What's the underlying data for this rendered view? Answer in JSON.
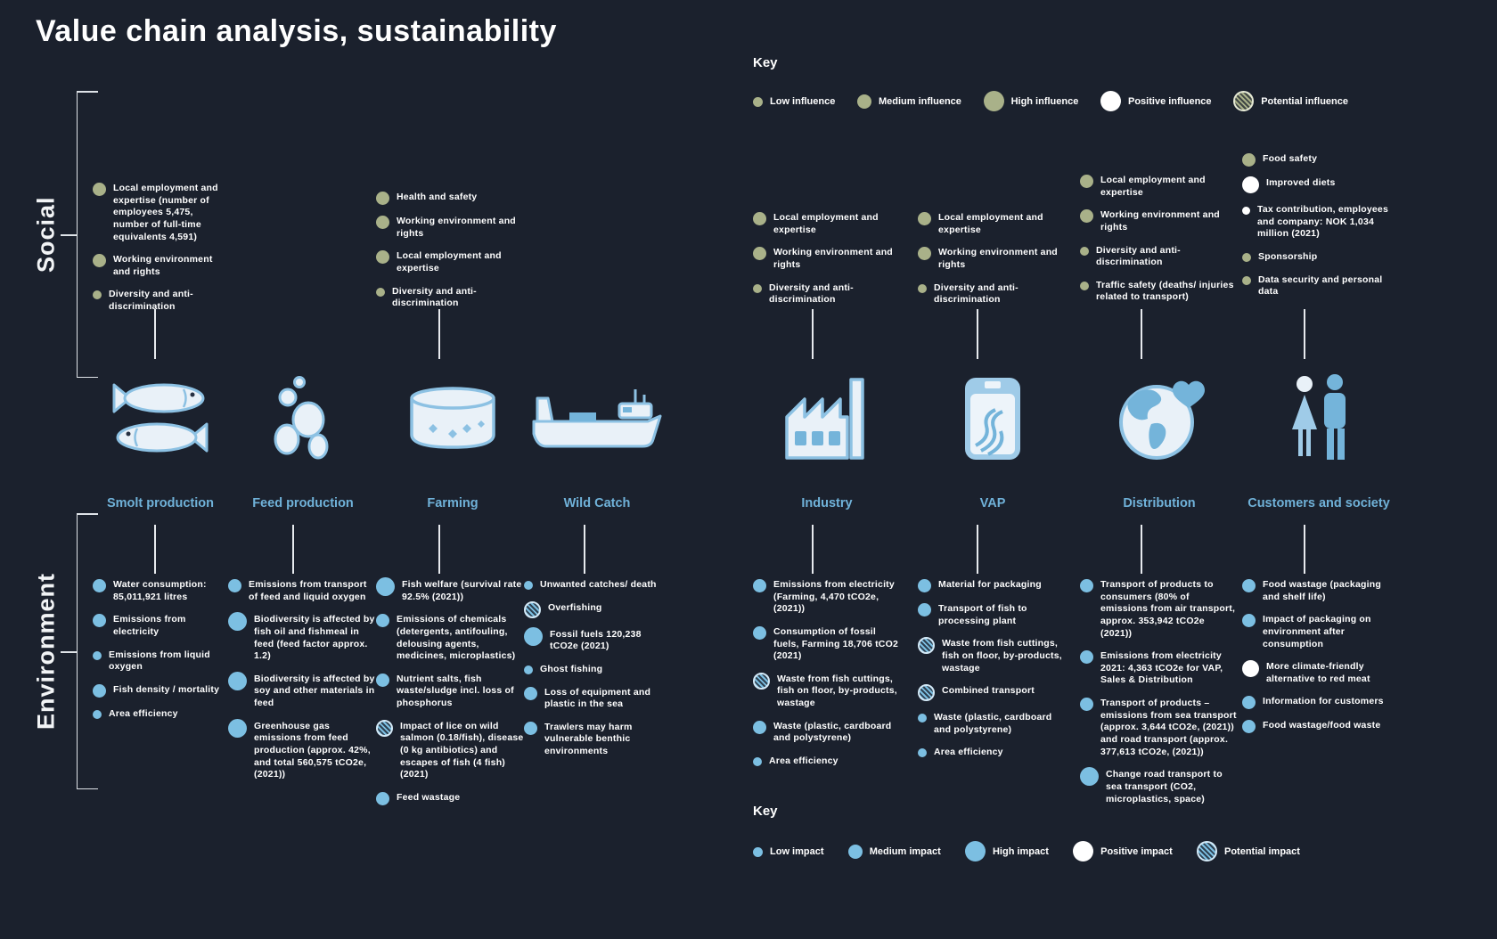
{
  "title": "Value chain analysis, sustainability",
  "colors": {
    "background": "#1b212d",
    "influence_dot": "#a9b189",
    "impact_dot": "#7cbfe2",
    "positive_dot": "#ffffff",
    "stage_label": "#70b2d9",
    "text": "#ffffff"
  },
  "sections": {
    "social": "Social",
    "environment": "Environment"
  },
  "key_influence": {
    "title": "Key",
    "items": [
      {
        "label": "Low influence",
        "marker": "low"
      },
      {
        "label": "Medium influence",
        "marker": "medium"
      },
      {
        "label": "High influence",
        "marker": "high"
      },
      {
        "label": "Positive influence",
        "marker": "positive"
      },
      {
        "label": "Potential influence",
        "marker": "potential"
      }
    ]
  },
  "key_impact": {
    "title": "Key",
    "items": [
      {
        "label": "Low impact",
        "marker": "low"
      },
      {
        "label": "Medium impact",
        "marker": "medium"
      },
      {
        "label": "High impact",
        "marker": "high"
      },
      {
        "label": "Positive impact",
        "marker": "positive"
      },
      {
        "label": "Potential impact",
        "marker": "potential"
      }
    ]
  },
  "stages": [
    {
      "name": "Smolt production",
      "icon": "salmon-icon",
      "social": [
        {
          "marker": "medium",
          "label": "Local employment and expertise (number of employees 5,475, number of full-time equivalents 4,591)"
        },
        {
          "marker": "medium",
          "label": "Working environment and rights"
        },
        {
          "marker": "low",
          "label": "Diversity and anti-discrimination"
        }
      ],
      "environment": [
        {
          "marker": "medium",
          "label": "Water consumption: 85,011,921 litres"
        },
        {
          "marker": "medium",
          "label": "Emissions from electricity"
        },
        {
          "marker": "low",
          "label": "Emissions from liquid oxygen"
        },
        {
          "marker": "medium",
          "label": "Fish density / mortality"
        },
        {
          "marker": "low",
          "label": "Area efficiency"
        }
      ]
    },
    {
      "name": "Feed production",
      "icon": "feed-bubbles-icon",
      "social": [],
      "environment": [
        {
          "marker": "medium",
          "label": "Emissions from transport of feed and liquid oxygen"
        },
        {
          "marker": "high",
          "label": "Biodiversity is affected by fish oil and fishmeal in feed (feed factor approx. 1.2)"
        },
        {
          "marker": "high",
          "label": "Biodiversity is affected by soy and other materials in feed"
        },
        {
          "marker": "high",
          "label": "Greenhouse gas emissions from feed production (approx. 42%, and total 560,575 tCO2e, (2021))"
        }
      ]
    },
    {
      "name": "Farming",
      "icon": "fish-cage-icon",
      "social": [
        {
          "marker": "medium",
          "label": "Health and safety"
        },
        {
          "marker": "medium",
          "label": "Working environment and rights"
        },
        {
          "marker": "medium",
          "label": "Local employment and expertise"
        },
        {
          "marker": "low",
          "label": "Diversity and anti-discrimination"
        }
      ],
      "environment": [
        {
          "marker": "high",
          "label": "Fish welfare (survival rate 92.5% (2021))"
        },
        {
          "marker": "medium",
          "label": "Emissions of chemicals (detergents, antifouling, delousing agents, medicines, microplastics)"
        },
        {
          "marker": "medium",
          "label": "Nutrient salts, fish waste/sludge incl. loss of phosphorus"
        },
        {
          "marker": "potential",
          "label": "Impact of lice on wild salmon (0.18/fish), disease (0 kg antibiotics) and escapes of fish (4 fish) (2021)"
        },
        {
          "marker": "medium",
          "label": "Feed wastage"
        }
      ]
    },
    {
      "name": "Wild Catch",
      "icon": "fishing-vessel-icon",
      "social": [],
      "environment": [
        {
          "marker": "low",
          "label": "Unwanted catches/ death"
        },
        {
          "marker": "potential",
          "label": "Overfishing"
        },
        {
          "marker": "high",
          "label": "Fossil fuels 120,238 tCO2e (2021)"
        },
        {
          "marker": "low",
          "label": "Ghost fishing"
        },
        {
          "marker": "medium",
          "label": "Loss of equipment and plastic in the sea"
        },
        {
          "marker": "medium",
          "label": "Trawlers may harm vulnerable benthic environments"
        }
      ]
    },
    {
      "name": "Industry",
      "icon": "factory-icon",
      "social": [
        {
          "marker": "medium",
          "label": "Local employment and expertise"
        },
        {
          "marker": "medium",
          "label": "Working environment and rights"
        },
        {
          "marker": "low",
          "label": "Diversity and anti-discrimination"
        }
      ],
      "environment": [
        {
          "marker": "medium",
          "label": "Emissions from electricity (Farming, 4,470 tCO2e, (2021))"
        },
        {
          "marker": "medium",
          "label": "Consumption of fossil fuels, Farming 18,706 tCO2 (2021)"
        },
        {
          "marker": "potential",
          "label": "Waste from fish cuttings, fish on floor, by-products, wastage"
        },
        {
          "marker": "medium",
          "label": "Waste (plastic, cardboard and polystyrene)"
        },
        {
          "marker": "low",
          "label": "Area efficiency"
        }
      ]
    },
    {
      "name": "VAP",
      "icon": "vacuum-pack-icon",
      "social": [
        {
          "marker": "medium",
          "label": "Local employment and expertise"
        },
        {
          "marker": "medium",
          "label": "Working environment and rights"
        },
        {
          "marker": "low",
          "label": "Diversity and anti-discrimination"
        }
      ],
      "environment": [
        {
          "marker": "medium",
          "label": "Material for packaging"
        },
        {
          "marker": "medium",
          "label": "Transport of fish to processing plant"
        },
        {
          "marker": "potential",
          "label": "Waste from fish cuttings, fish on floor, by-products, wastage"
        },
        {
          "marker": "potential",
          "label": "Combined transport"
        },
        {
          "marker": "low",
          "label": "Waste (plastic, cardboard and polystyrene)"
        },
        {
          "marker": "low",
          "label": "Area efficiency"
        }
      ]
    },
    {
      "name": "Distribution",
      "icon": "globe-heart-icon",
      "social": [
        {
          "marker": "medium",
          "label": "Local employment and expertise"
        },
        {
          "marker": "medium",
          "label": "Working environment and rights"
        },
        {
          "marker": "low",
          "label": "Diversity and anti-discrimination"
        },
        {
          "marker": "low",
          "label": "Traffic safety (deaths/ injuries related to transport)"
        }
      ],
      "environment": [
        {
          "marker": "medium",
          "label": "Transport of products to consumers (80% of emissions from air transport, approx. 353,942 tCO2e (2021))"
        },
        {
          "marker": "medium",
          "label": "Emissions from electricity 2021: 4,363 tCO2e for VAP, Sales & Distribution"
        },
        {
          "marker": "medium",
          "label": "Transport of products – emissions from sea transport (approx. 3,644 tCO2e, (2021)) and road transport (approx. 377,613 tCO2e, (2021))"
        },
        {
          "marker": "high",
          "label": "Change road transport to sea transport (CO2, microplastics, space)"
        }
      ]
    },
    {
      "name": "Customers and society",
      "icon": "people-icon",
      "social": [
        {
          "marker": "medium",
          "label": "Food safety"
        },
        {
          "marker": "positive",
          "label": "Improved diets"
        },
        {
          "marker": "positive-small",
          "label": "Tax contribution, employees and company: NOK 1,034 million (2021)"
        },
        {
          "marker": "low",
          "label": "Sponsorship"
        },
        {
          "marker": "low",
          "label": "Data security and personal data"
        }
      ],
      "environment": [
        {
          "marker": "medium",
          "label": "Food wastage (packaging and shelf life)"
        },
        {
          "marker": "medium",
          "label": "Impact of packaging on environment after consumption"
        },
        {
          "marker": "positive",
          "label": "More climate-friendly alternative to red meat"
        },
        {
          "marker": "medium",
          "label": "Information for customers"
        },
        {
          "marker": "medium",
          "label": "Food wastage/food waste"
        }
      ]
    }
  ]
}
